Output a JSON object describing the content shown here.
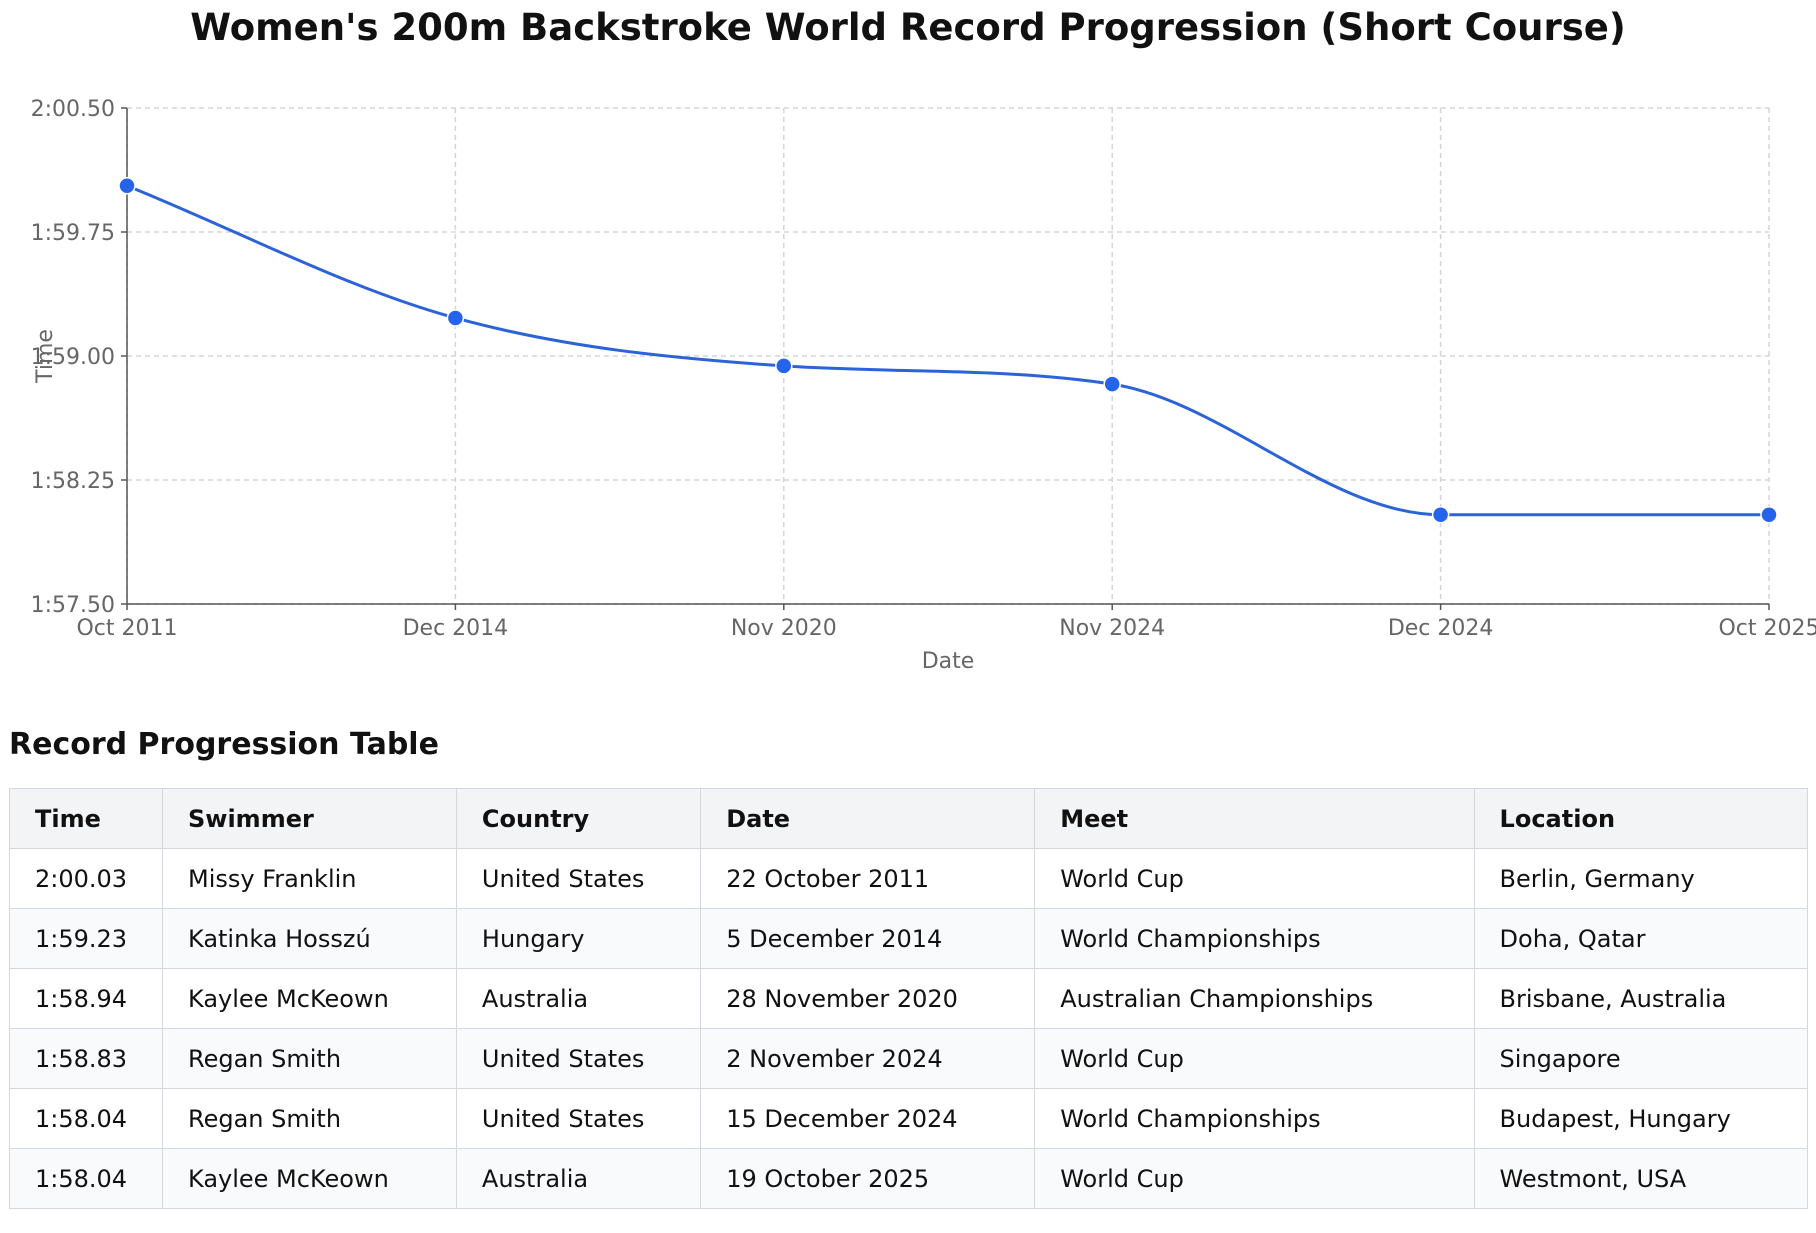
{
  "page": {
    "title": "Women's 200m Backstroke World Record Progression (Short Course)",
    "table_title": "Record Progression Table"
  },
  "colors": {
    "line": "#2c63d8",
    "point": "#2563eb",
    "grid": "#d1d5db",
    "axis": "#555555",
    "tick_text": "#666666",
    "header_bg": "#f3f4f6",
    "row_alt_bg": "#f9fafb",
    "border": "#d4d7dd"
  },
  "chart_data": {
    "type": "line",
    "title": "Women's 200m Backstroke World Record Progression (Short Course)",
    "xlabel": "Date",
    "ylabel": "Time",
    "x_scale": "categorical",
    "categories": [
      "Oct 2011",
      "Dec 2014",
      "Nov 2020",
      "Nov 2024",
      "Dec 2024",
      "Oct 2025"
    ],
    "y_seconds": [
      120.03,
      119.23,
      118.94,
      118.83,
      118.04,
      118.04
    ],
    "y_tick_labels": [
      "2:00.50",
      "1:59.75",
      "1:59.00",
      "1:58.25",
      "1:57.50"
    ],
    "y_tick_seconds": [
      120.5,
      119.75,
      119.0,
      118.25,
      117.5
    ],
    "ylim": [
      117.5,
      120.5
    ],
    "grid": true,
    "legend": "none",
    "smooth": true
  },
  "table": {
    "columns": [
      "Time",
      "Swimmer",
      "Country",
      "Date",
      "Meet",
      "Location"
    ],
    "rows": [
      [
        "2:00.03",
        "Missy Franklin",
        "United States",
        "22 October 2011",
        "World Cup",
        "Berlin, Germany"
      ],
      [
        "1:59.23",
        "Katinka Hosszú",
        "Hungary",
        "5 December 2014",
        "World Championships",
        "Doha, Qatar"
      ],
      [
        "1:58.94",
        "Kaylee McKeown",
        "Australia",
        "28 November 2020",
        "Australian Championships",
        "Brisbane, Australia"
      ],
      [
        "1:58.83",
        "Regan Smith",
        "United States",
        "2 November 2024",
        "World Cup",
        "Singapore"
      ],
      [
        "1:58.04",
        "Regan Smith",
        "United States",
        "15 December 2024",
        "World Championships",
        "Budapest, Hungary"
      ],
      [
        "1:58.04",
        "Kaylee McKeown",
        "Australia",
        "19 October 2025",
        "World Cup",
        "Westmont, USA"
      ]
    ]
  }
}
